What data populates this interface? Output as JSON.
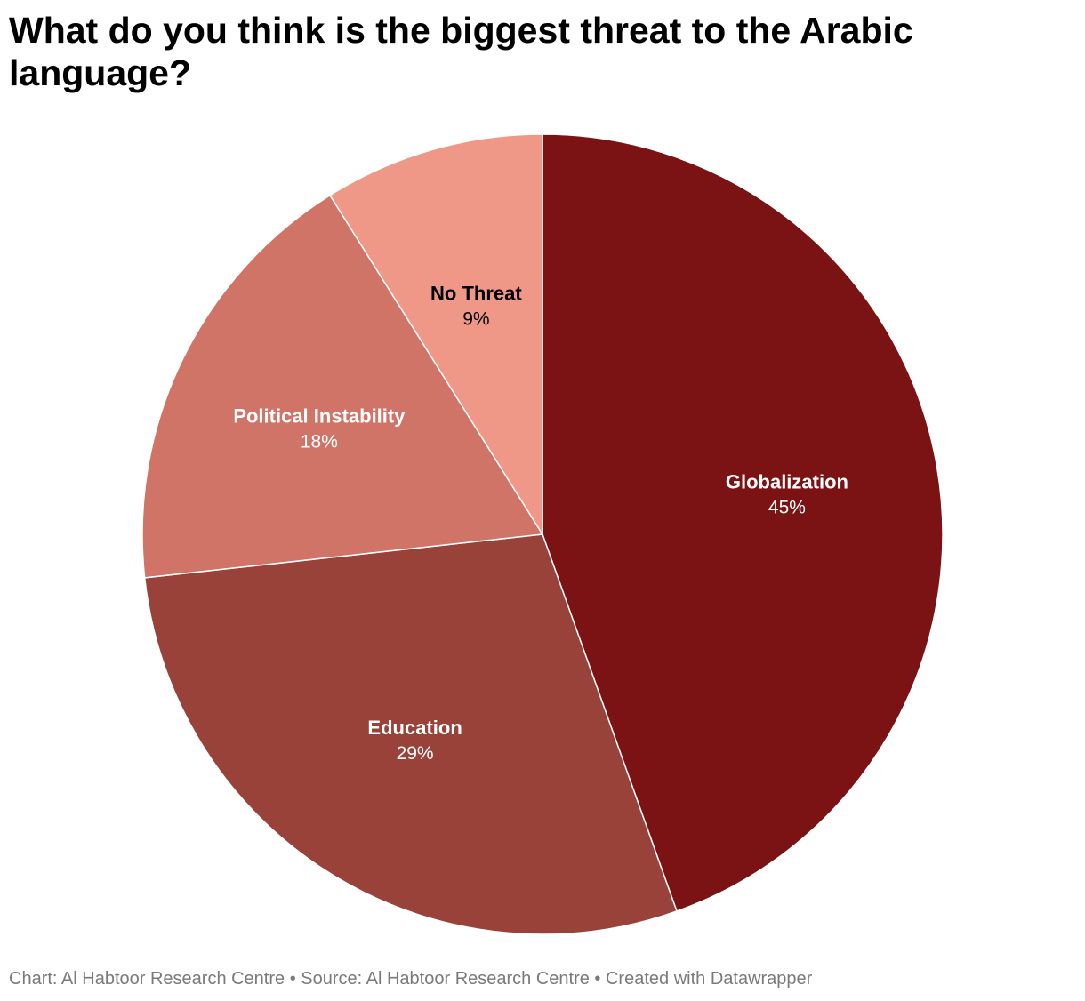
{
  "chart_data": {
    "type": "pie",
    "title": "What do you think is the biggest threat to the Arabic language?",
    "start": "12 o'clock",
    "direction": "clockwise",
    "slices": [
      {
        "label": "Globalization",
        "value": 45,
        "display": "45%",
        "color": "#7b1214",
        "text_color": "#ffffff"
      },
      {
        "label": "Education",
        "value": 29,
        "display": "29%",
        "color": "#98423a",
        "text_color": "#ffffff"
      },
      {
        "label": "Political Instability",
        "value": 18,
        "display": "18%",
        "color": "#cf7467",
        "text_color": "#ffffff"
      },
      {
        "label": "No Threat",
        "value": 9,
        "display": "9%",
        "color": "#ef9888",
        "text_color": "#000000"
      }
    ]
  },
  "footer": {
    "text": "Chart: Al Habtoor Research Centre • Source: Al Habtoor Research Centre • Created with Datawrapper"
  }
}
